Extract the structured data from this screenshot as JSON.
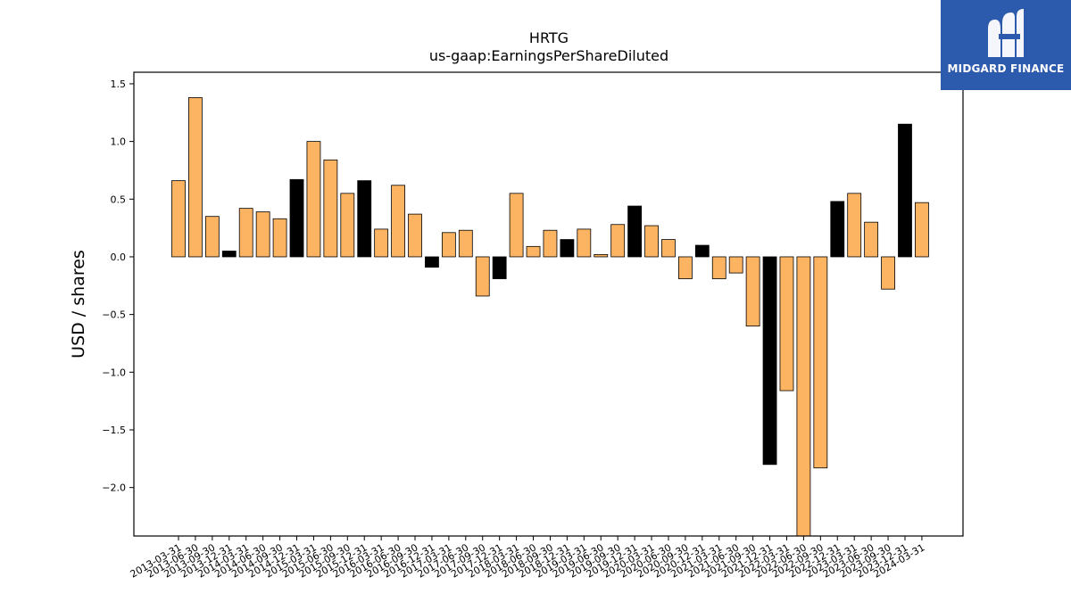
{
  "brand": {
    "name": "MIDGARD FINANCE",
    "logo_icon": "midgard-mi-monogram-icon",
    "bg_color": "#2c5aad"
  },
  "chart_data": {
    "type": "bar",
    "title": "HRTG",
    "subtitle": "us-gaap:EarningsPerShareDiluted",
    "xlabel": "",
    "ylabel": "USD / shares",
    "ylim": [
      -2.42,
      1.6
    ],
    "yticks": [
      1.5,
      1.0,
      0.5,
      0.0,
      -0.5,
      -1.0,
      -1.5,
      -2.0
    ],
    "ytick_labels": [
      "1.5",
      "1.0",
      "0.5",
      "0.0",
      "−0.5",
      "−1.0",
      "−1.5",
      "−2.0"
    ],
    "grid": false,
    "colors": {
      "quarterly": "#fdb462",
      "annual_q4": "#000000"
    },
    "categories": [
      "2013-03-31",
      "2013-06-30",
      "2013-09-30",
      "2013-12-31",
      "2014-03-31",
      "2014-06-30",
      "2014-09-30",
      "2014-12-31",
      "2015-03-31",
      "2015-06-30",
      "2015-09-30",
      "2015-12-31",
      "2016-03-31",
      "2016-06-30",
      "2016-09-30",
      "2016-12-31",
      "2017-03-31",
      "2017-06-30",
      "2017-09-30",
      "2017-12-31",
      "2018-03-31",
      "2018-06-30",
      "2018-09-30",
      "2018-12-31",
      "2019-03-31",
      "2019-06-30",
      "2019-09-30",
      "2019-12-31",
      "2020-03-31",
      "2020-06-30",
      "2020-09-30",
      "2020-12-31",
      "2021-03-31",
      "2021-06-30",
      "2021-09-30",
      "2021-12-31",
      "2022-03-31",
      "2022-06-30",
      "2022-09-30",
      "2022-12-31",
      "2023-03-31",
      "2023-06-30",
      "2023-09-30",
      "2023-12-31",
      "2024-03-31"
    ],
    "values": [
      0.66,
      1.38,
      0.35,
      0.05,
      0.42,
      0.39,
      0.33,
      0.67,
      1.0,
      0.84,
      0.55,
      0.66,
      0.24,
      0.62,
      0.37,
      -0.09,
      0.21,
      0.23,
      -0.34,
      -0.19,
      0.55,
      0.09,
      0.23,
      0.15,
      0.24,
      0.02,
      0.28,
      0.44,
      0.27,
      0.15,
      -0.19,
      0.1,
      -0.19,
      -0.14,
      -0.6,
      -1.8,
      -1.16,
      -2.42,
      -1.83,
      0.48,
      0.55,
      0.3,
      -0.28,
      1.15,
      0.47
    ],
    "bar_kind": [
      "q",
      "q",
      "q",
      "a",
      "q",
      "q",
      "q",
      "a",
      "q",
      "q",
      "q",
      "a",
      "q",
      "q",
      "q",
      "a",
      "q",
      "q",
      "q",
      "a",
      "q",
      "q",
      "q",
      "a",
      "q",
      "q",
      "q",
      "a",
      "q",
      "q",
      "q",
      "a",
      "q",
      "q",
      "q",
      "a",
      "q",
      "q",
      "q",
      "a",
      "q",
      "q",
      "q",
      "a",
      "q"
    ]
  }
}
